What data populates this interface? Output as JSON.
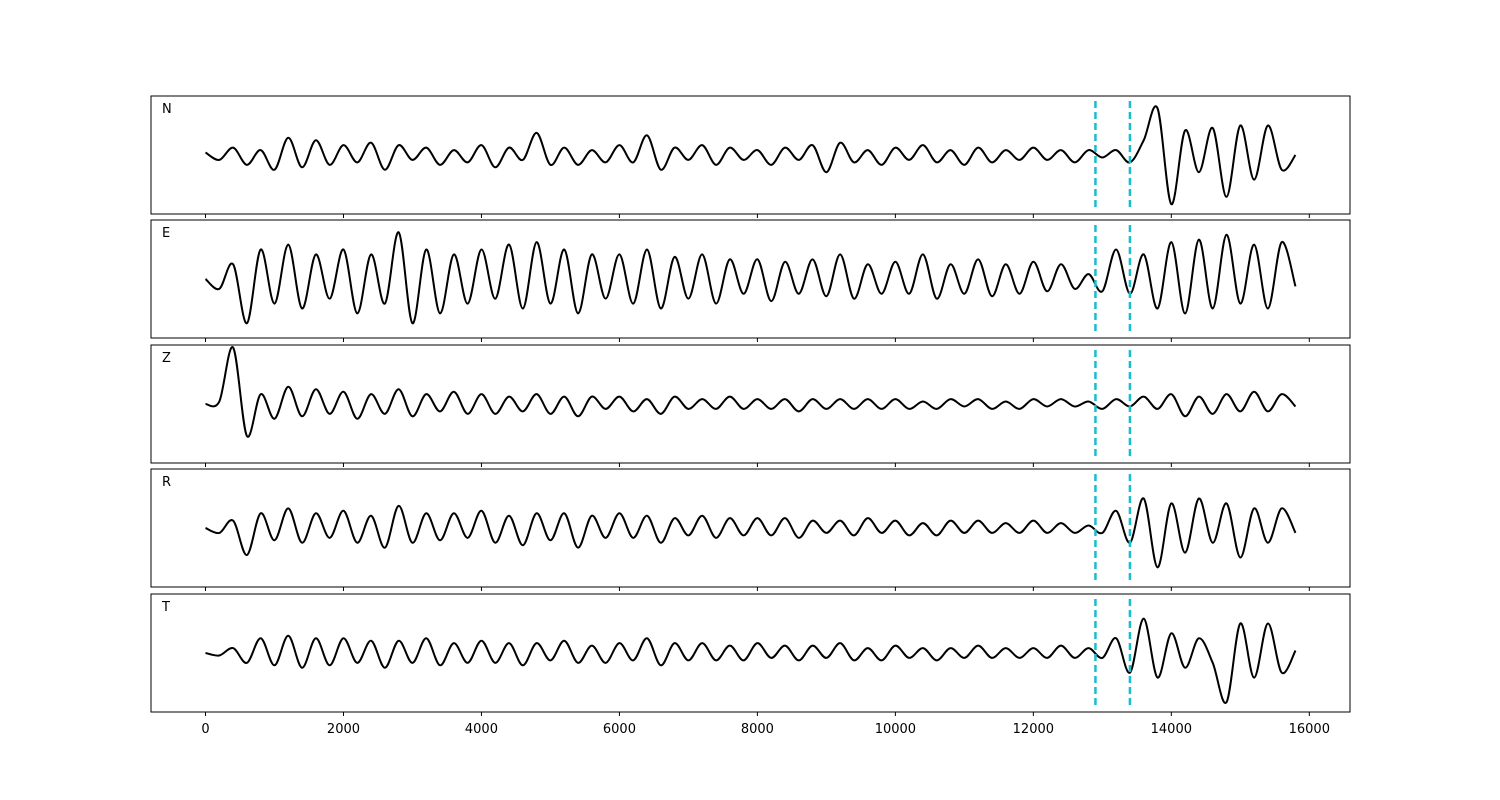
{
  "chart_data": {
    "type": "line",
    "subplots": true,
    "x": [
      0,
      200,
      400,
      600,
      800,
      1000,
      1200,
      1400,
      1600,
      1800,
      2000,
      2200,
      2400,
      2600,
      2800,
      3000,
      3200,
      3400,
      3600,
      3800,
      4000,
      4200,
      4400,
      4600,
      4800,
      5000,
      5200,
      5400,
      5600,
      5800,
      6000,
      6200,
      6400,
      6600,
      6800,
      7000,
      7200,
      7400,
      7600,
      7800,
      8000,
      8200,
      8400,
      8600,
      8800,
      9000,
      9200,
      9400,
      9600,
      9800,
      10000,
      10200,
      10400,
      10600,
      10800,
      11000,
      11200,
      11400,
      11600,
      11800,
      12000,
      12200,
      12400,
      12600,
      12800,
      13000,
      13200,
      13400,
      13600,
      13800,
      14000,
      14200,
      14400,
      14600,
      14800,
      15000,
      15200,
      15400,
      15600,
      15800
    ],
    "xlim": [
      -790,
      16590
    ],
    "xticks": [
      0,
      2000,
      4000,
      6000,
      8000,
      10000,
      12000,
      14000,
      16000
    ],
    "ylim": [
      -1.2,
      1.2
    ],
    "vlines": [
      12900,
      13400
    ],
    "vline_color": "#17becf",
    "series": [
      {
        "name": "N",
        "color": "#000000",
        "values": [
          0.05,
          -0.1,
          0.15,
          -0.2,
          0.1,
          -0.3,
          0.35,
          -0.25,
          0.3,
          -0.2,
          0.2,
          -0.15,
          0.25,
          -0.3,
          0.2,
          -0.1,
          0.15,
          -0.2,
          0.1,
          -0.15,
          0.2,
          -0.25,
          0.15,
          -0.1,
          0.45,
          -0.2,
          0.15,
          -0.2,
          0.1,
          -0.15,
          0.2,
          -0.15,
          0.4,
          -0.3,
          0.15,
          -0.1,
          0.2,
          -0.2,
          0.15,
          -0.1,
          0.1,
          -0.2,
          0.15,
          -0.1,
          0.2,
          -0.35,
          0.25,
          -0.15,
          0.1,
          -0.2,
          0.15,
          -0.1,
          0.2,
          -0.15,
          0.1,
          -0.2,
          0.15,
          -0.15,
          0.1,
          -0.1,
          0.15,
          -0.1,
          0.1,
          -0.15,
          0.1,
          -0.05,
          0.1,
          -0.15,
          0.3,
          0.95,
          -1.0,
          0.5,
          -0.35,
          0.55,
          -0.85,
          0.6,
          -0.5,
          0.6,
          -0.3,
          0.0
        ]
      },
      {
        "name": "E",
        "color": "#000000",
        "values": [
          0.0,
          -0.2,
          0.3,
          -0.9,
          0.6,
          -0.5,
          0.7,
          -0.6,
          0.5,
          -0.4,
          0.6,
          -0.7,
          0.5,
          -0.5,
          0.95,
          -0.9,
          0.6,
          -0.7,
          0.5,
          -0.5,
          0.6,
          -0.4,
          0.7,
          -0.6,
          0.75,
          -0.5,
          0.6,
          -0.7,
          0.5,
          -0.4,
          0.5,
          -0.5,
          0.6,
          -0.6,
          0.45,
          -0.4,
          0.5,
          -0.5,
          0.4,
          -0.3,
          0.4,
          -0.45,
          0.35,
          -0.3,
          0.4,
          -0.35,
          0.5,
          -0.4,
          0.3,
          -0.3,
          0.35,
          -0.3,
          0.5,
          -0.4,
          0.3,
          -0.3,
          0.4,
          -0.35,
          0.3,
          -0.3,
          0.35,
          -0.25,
          0.3,
          -0.2,
          0.1,
          -0.25,
          0.6,
          -0.3,
          0.5,
          -0.6,
          0.75,
          -0.7,
          0.8,
          -0.6,
          0.9,
          -0.5,
          0.7,
          -0.6,
          0.75,
          -0.15
        ]
      },
      {
        "name": "Z",
        "color": "#000000",
        "values": [
          0.0,
          0.05,
          1.15,
          -0.65,
          0.2,
          -0.3,
          0.35,
          -0.25,
          0.3,
          -0.2,
          0.25,
          -0.3,
          0.2,
          -0.2,
          0.3,
          -0.25,
          0.2,
          -0.15,
          0.25,
          -0.2,
          0.2,
          -0.2,
          0.15,
          -0.15,
          0.2,
          -0.2,
          0.15,
          -0.25,
          0.15,
          -0.1,
          0.15,
          -0.15,
          0.1,
          -0.2,
          0.15,
          -0.1,
          0.1,
          -0.1,
          0.15,
          -0.1,
          0.1,
          -0.1,
          0.1,
          -0.15,
          0.1,
          -0.1,
          0.1,
          -0.1,
          0.1,
          -0.1,
          0.1,
          -0.1,
          0.05,
          -0.1,
          0.1,
          -0.05,
          0.1,
          -0.1,
          0.05,
          -0.1,
          0.1,
          -0.05,
          0.1,
          -0.05,
          0.05,
          -0.1,
          0.1,
          -0.05,
          0.15,
          -0.1,
          0.2,
          -0.25,
          0.15,
          -0.2,
          0.2,
          -0.15,
          0.25,
          -0.15,
          0.2,
          -0.05
        ]
      },
      {
        "name": "R",
        "color": "#000000",
        "values": [
          0.0,
          -0.1,
          0.15,
          -0.55,
          0.3,
          -0.25,
          0.4,
          -0.3,
          0.3,
          -0.2,
          0.35,
          -0.3,
          0.25,
          -0.4,
          0.45,
          -0.3,
          0.3,
          -0.25,
          0.3,
          -0.2,
          0.35,
          -0.3,
          0.25,
          -0.35,
          0.3,
          -0.25,
          0.3,
          -0.4,
          0.25,
          -0.2,
          0.3,
          -0.2,
          0.25,
          -0.3,
          0.2,
          -0.15,
          0.25,
          -0.2,
          0.2,
          -0.15,
          0.2,
          -0.15,
          0.2,
          -0.2,
          0.15,
          -0.1,
          0.15,
          -0.15,
          0.2,
          -0.1,
          0.15,
          -0.15,
          0.1,
          -0.15,
          0.15,
          -0.1,
          0.15,
          -0.1,
          0.1,
          -0.1,
          0.15,
          -0.1,
          0.1,
          -0.1,
          0.05,
          -0.1,
          0.35,
          -0.3,
          0.6,
          -0.8,
          0.5,
          -0.5,
          0.6,
          -0.3,
          0.5,
          -0.6,
          0.4,
          -0.3,
          0.4,
          -0.1
        ]
      },
      {
        "name": "T",
        "color": "#000000",
        "values": [
          0.0,
          -0.05,
          0.1,
          -0.2,
          0.3,
          -0.25,
          0.35,
          -0.3,
          0.3,
          -0.25,
          0.3,
          -0.2,
          0.25,
          -0.3,
          0.25,
          -0.2,
          0.3,
          -0.25,
          0.2,
          -0.2,
          0.25,
          -0.2,
          0.2,
          -0.25,
          0.2,
          -0.15,
          0.25,
          -0.2,
          0.15,
          -0.2,
          0.2,
          -0.15,
          0.3,
          -0.25,
          0.2,
          -0.15,
          0.2,
          -0.15,
          0.15,
          -0.15,
          0.2,
          -0.1,
          0.15,
          -0.15,
          0.15,
          -0.1,
          0.2,
          -0.15,
          0.1,
          -0.15,
          0.15,
          -0.1,
          0.1,
          -0.15,
          0.1,
          -0.1,
          0.15,
          -0.1,
          0.1,
          -0.1,
          0.1,
          -0.1,
          0.15,
          -0.1,
          0.1,
          -0.1,
          0.3,
          -0.4,
          0.7,
          -0.5,
          0.4,
          -0.3,
          0.3,
          -0.2,
          -1.0,
          0.6,
          -0.5,
          0.6,
          -0.4,
          0.05
        ]
      }
    ]
  }
}
